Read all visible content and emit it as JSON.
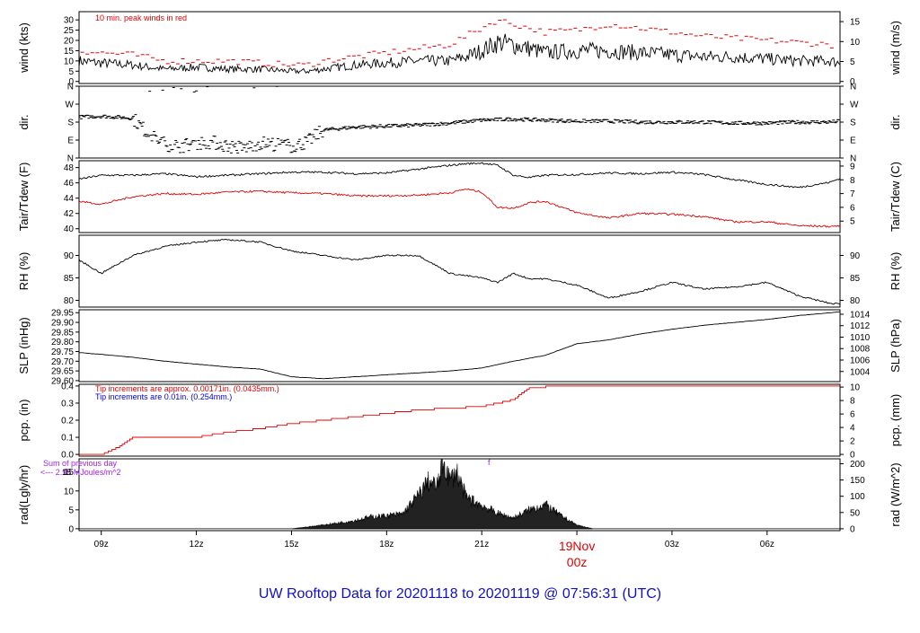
{
  "title": "UW Rooftop Data for 20201118  to  20201119 @ 07:56:31  (UTC)",
  "colors": {
    "black": "#000000",
    "red": "#e00000",
    "blue": "#0000dd",
    "purple": "#a020f0",
    "title": "#1010cc"
  },
  "chart_data": [
    {
      "type": "line",
      "panel": "wind",
      "ylabel_left": "wind (kts)",
      "ylabel_right": "wind (m/s)",
      "left_ticks": [
        "0",
        "5",
        "10",
        "15",
        "20",
        "25",
        "30"
      ],
      "left_tick_values": [
        0,
        5,
        10,
        15,
        20,
        25,
        30
      ],
      "right_ticks": [
        "0",
        "5",
        "10",
        "15"
      ],
      "right_tick_values": [
        0,
        9.72,
        19.44,
        29.16
      ],
      "ylim": [
        -1,
        34
      ],
      "annotation": "10 min. peak winds in red",
      "x": [
        8.3,
        9,
        10,
        11,
        12,
        13,
        14,
        15,
        15.5,
        16,
        17,
        18,
        19,
        20,
        20.5,
        21,
        21.5,
        22,
        22.5,
        23,
        24,
        25,
        26,
        27,
        28,
        29,
        30,
        31,
        32,
        32.3
      ],
      "series": [
        {
          "values": [
            10,
            9,
            8,
            6,
            7,
            6,
            6,
            5,
            5,
            6,
            8,
            9,
            10,
            10,
            12,
            15,
            19,
            18,
            16,
            14,
            15,
            15,
            14,
            13,
            12,
            12,
            11,
            10,
            10,
            9
          ]
        },
        {
          "values": [
            15,
            14,
            13,
            10,
            10,
            10,
            9,
            8,
            8,
            10,
            12,
            14,
            16,
            18,
            22,
            26,
            30,
            28,
            26,
            24,
            25,
            28,
            26,
            24,
            22,
            21,
            20,
            19,
            18,
            16
          ]
        }
      ]
    },
    {
      "type": "scatter",
      "panel": "dir",
      "ylabel_left": "dir.",
      "ylabel_right": "dir.",
      "left_ticks": [
        "N",
        "E",
        "S",
        "W",
        "N"
      ],
      "left_tick_values": [
        0,
        90,
        180,
        270,
        360
      ],
      "right_ticks": [
        "N",
        "E",
        "S",
        "W",
        "N"
      ],
      "right_tick_values": [
        0,
        90,
        180,
        270,
        360
      ],
      "ylim": [
        0,
        360
      ],
      "x": [
        8.3,
        9,
        10,
        10.5,
        11,
        11.5,
        12,
        12.5,
        13,
        13.5,
        14,
        14.5,
        15,
        15.5,
        16,
        17,
        18,
        19,
        20,
        21,
        22,
        23,
        24,
        25,
        26,
        27,
        28,
        29,
        30,
        31,
        32,
        32.3
      ],
      "values": [
        205,
        210,
        200,
        120,
        70,
        60,
        75,
        80,
        60,
        50,
        75,
        70,
        60,
        80,
        140,
        155,
        160,
        165,
        175,
        190,
        195,
        190,
        185,
        185,
        180,
        180,
        180,
        175,
        175,
        180,
        180,
        185
      ]
    },
    {
      "type": "line",
      "panel": "temp",
      "ylabel_left": "Tair/Tdew (F)",
      "ylabel_right": "Tair/Tdew (C)",
      "left_ticks": [
        "40",
        "42",
        "44",
        "46",
        "48"
      ],
      "left_tick_values": [
        40,
        42,
        44,
        46,
        48
      ],
      "right_ticks": [
        "5",
        "6",
        "7",
        "8",
        "9"
      ],
      "right_tick_values": [
        41,
        42.8,
        44.6,
        46.4,
        48.2
      ],
      "ylim": [
        39.5,
        48.9
      ],
      "x": [
        8.3,
        9,
        10,
        11,
        12,
        13,
        14,
        15,
        16,
        17,
        18,
        19,
        20,
        20.5,
        21,
        21.5,
        22,
        22.5,
        23,
        24,
        25,
        26,
        27,
        28,
        29,
        30,
        31,
        32,
        32.3
      ],
      "series": [
        {
          "name": "Tair",
          "color": "#000000",
          "values": [
            46.5,
            47,
            47,
            47.2,
            46.8,
            47,
            47.2,
            47.4,
            47.4,
            47.2,
            47.3,
            47.8,
            48.3,
            48.5,
            48.6,
            48.3,
            47,
            46.7,
            47,
            47.1,
            47.3,
            47.2,
            47.4,
            47.1,
            46.4,
            45.8,
            45.4,
            46.1,
            46.6
          ]
        },
        {
          "name": "Tdew",
          "color": "#e00000",
          "values": [
            43.6,
            43.2,
            44.2,
            44.6,
            44.5,
            44.8,
            44.9,
            44.7,
            44.6,
            44.3,
            44.3,
            44.4,
            44.7,
            45.2,
            44.8,
            42.8,
            42.7,
            43.4,
            43.6,
            42.1,
            41.4,
            42,
            41.9,
            41.6,
            40.9,
            40.9,
            40.4,
            40.3,
            40.4
          ]
        }
      ]
    },
    {
      "type": "line",
      "panel": "rh",
      "ylabel_left": "RH (%)",
      "ylabel_right": "RH (%)",
      "left_ticks": [
        "80",
        "85",
        "90"
      ],
      "left_tick_values": [
        80,
        85,
        90
      ],
      "right_ticks": [
        "80",
        "85",
        "90"
      ],
      "right_tick_values": [
        80,
        85,
        90
      ],
      "ylim": [
        78.5,
        94.5
      ],
      "x": [
        8.3,
        9,
        10,
        11,
        12,
        13,
        14,
        15,
        16,
        17,
        18,
        19,
        20,
        20.5,
        21,
        21.5,
        22,
        22.5,
        23,
        24,
        25,
        26,
        27,
        28,
        29,
        30,
        31,
        32,
        32.3
      ],
      "series": [
        {
          "values": [
            89,
            86,
            90,
            92,
            93,
            93.5,
            93,
            91,
            90,
            89,
            90,
            90,
            86,
            85.5,
            85,
            84,
            86,
            84.8,
            84.8,
            83.4,
            80.5,
            82,
            84,
            82.5,
            83,
            84,
            81,
            79.3,
            79.2
          ]
        }
      ]
    },
    {
      "type": "line",
      "panel": "slp",
      "ylabel_left": "SLP (inHg)",
      "ylabel_right": "SLP (hPa)",
      "left_ticks": [
        "29.60",
        "29.65",
        "29.70",
        "29.75",
        "29.80",
        "29.85",
        "29.90",
        "29.95"
      ],
      "left_tick_values": [
        29.6,
        29.65,
        29.7,
        29.75,
        29.8,
        29.85,
        29.9,
        29.95
      ],
      "right_ticks": [
        "1004",
        "1006",
        "1008",
        "1010",
        "1012",
        "1014"
      ],
      "right_tick_values": [
        29.647,
        29.706,
        29.765,
        29.824,
        29.883,
        29.942
      ],
      "ylim": [
        29.595,
        29.965
      ],
      "x": [
        8.3,
        9,
        10,
        11,
        12,
        13,
        14,
        15,
        16,
        17,
        18,
        19,
        20,
        21,
        22,
        23,
        24,
        25,
        26,
        27,
        28,
        29,
        30,
        31,
        32,
        32.3
      ],
      "series": [
        {
          "values": [
            29.745,
            29.735,
            29.72,
            29.7,
            29.685,
            29.67,
            29.66,
            29.62,
            29.61,
            29.62,
            29.63,
            29.64,
            29.65,
            29.665,
            29.7,
            29.73,
            29.79,
            29.81,
            29.84,
            29.865,
            29.885,
            29.9,
            29.915,
            29.935,
            29.95,
            29.955
          ]
        }
      ]
    },
    {
      "type": "line",
      "panel": "pcp",
      "ylabel_left": "pcp. (in)",
      "ylabel_right": "pcp. (mm)",
      "left_ticks": [
        "0.0",
        "0.1",
        "0.2",
        "0.3",
        "0.4"
      ],
      "left_tick_values": [
        0,
        0.1,
        0.2,
        0.3,
        0.4
      ],
      "right_ticks": [
        "0",
        "2",
        "4",
        "6",
        "8",
        "10"
      ],
      "right_tick_values": [
        0,
        0.0787,
        0.1575,
        0.2362,
        0.315,
        0.3937
      ],
      "ylim": [
        -0.01,
        0.41
      ],
      "annotations": [
        "Tip increments are approx. 0.00171in. (0.0435mm.)",
        "Tip increments are 0.01in. (0.254mm.)"
      ],
      "x": [
        8.3,
        9,
        9.5,
        10,
        11,
        12,
        13,
        14,
        15,
        16,
        17,
        18,
        19,
        20,
        21,
        22,
        22.5,
        23,
        24,
        25,
        26,
        27,
        28,
        29,
        30,
        31,
        32,
        32.3
      ],
      "series": [
        {
          "values": [
            0,
            0,
            0.04,
            0.1,
            0.1,
            0.1,
            0.13,
            0.15,
            0.18,
            0.2,
            0.22,
            0.24,
            0.26,
            0.27,
            0.28,
            0.32,
            0.39,
            0.395,
            0.395,
            0.395,
            0.4,
            0.4,
            0.4,
            0.4,
            0.4,
            0.4,
            0.4,
            0.4
          ]
        }
      ]
    },
    {
      "type": "area",
      "panel": "rad",
      "ylabel_left": "rad(Lgly/hr)",
      "ylabel_right": "rad (W/m^2)",
      "left_ticks": [
        "0",
        "5",
        "10",
        "15"
      ],
      "left_tick_values": [
        0,
        5,
        10,
        15
      ],
      "right_ticks": [
        "0",
        "50",
        "100",
        "150",
        "200"
      ],
      "right_tick_values": [
        0,
        4.3,
        8.6,
        12.9,
        17.2
      ],
      "ylim": [
        -0.5,
        18.5
      ],
      "annotations": [
        "Sum of previous day",
        "<--- 2.98 MJoules/m^2",
        "15",
        "f"
      ],
      "x": [
        15,
        16,
        17,
        17.5,
        18,
        18.5,
        19,
        19.3,
        19.6,
        19.8,
        20,
        20.2,
        20.5,
        21,
        21.5,
        22,
        22.5,
        23,
        23.5,
        24,
        24.5
      ],
      "series": [
        {
          "values": [
            0,
            1,
            2.2,
            3.2,
            3.5,
            4,
            9,
            12.8,
            11.5,
            18.3,
            13,
            15.5,
            8.5,
            6.3,
            4.2,
            2.9,
            5.1,
            6.5,
            3.5,
            1,
            0
          ]
        }
      ]
    }
  ],
  "x_axis": {
    "xlim": [
      8.3,
      32.3
    ],
    "ticks": [
      {
        "label": "09z",
        "x": 9
      },
      {
        "label": "12z",
        "x": 12
      },
      {
        "label": "15z",
        "x": 15
      },
      {
        "label": "18z",
        "x": 18
      },
      {
        "label": "21z",
        "x": 21
      },
      {
        "label": "03z",
        "x": 27
      },
      {
        "label": "06z",
        "x": 30
      }
    ],
    "day_break": {
      "x": 24,
      "label1": "19Nov",
      "label2": "00z"
    }
  }
}
